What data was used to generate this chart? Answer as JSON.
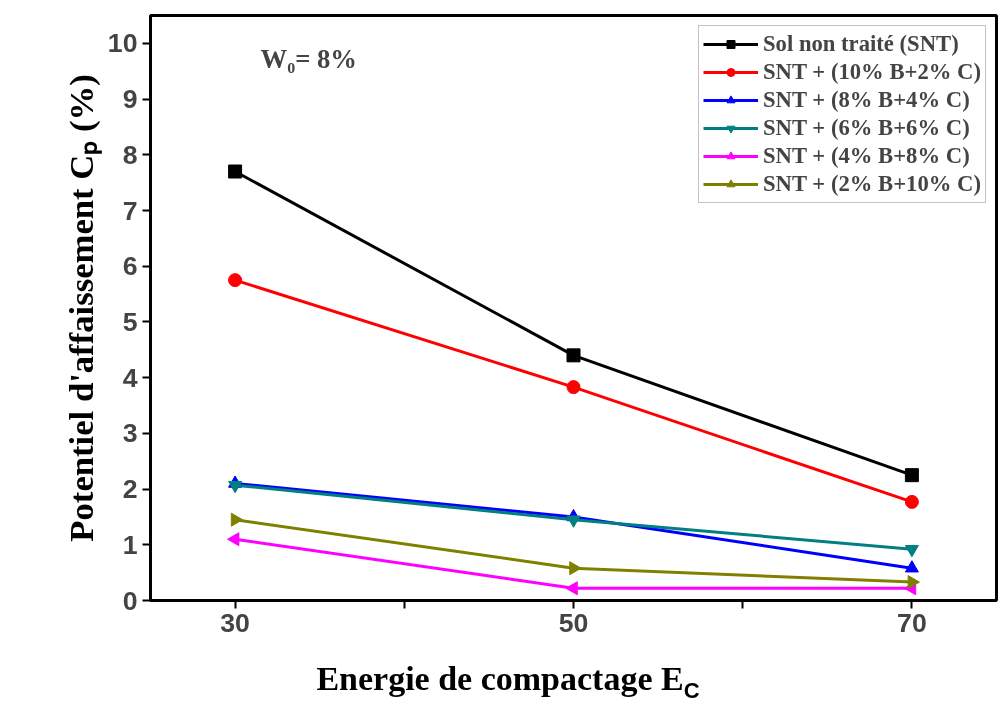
{
  "chart_data": {
    "type": "line",
    "xlabel": "Energie de compactage E$_{C}$",
    "ylabel": "Potentiel d'affaissement Cₚ (%)",
    "annotations": [
      "W₀= 8%"
    ],
    "x": [
      30,
      50,
      70
    ],
    "xlim": [
      25,
      75
    ],
    "xticks": [
      30,
      {
        "value": 40,
        "label": null
      },
      50,
      {
        "value": 60,
        "label": null
      },
      70
    ],
    "ylim": [
      0,
      10.5
    ],
    "yticks": [
      0,
      1,
      2,
      3,
      4,
      5,
      6,
      7,
      8,
      9,
      10
    ],
    "grid": false,
    "legend": "top right",
    "line_style": "solid",
    "series": [
      {
        "name": "Sol non traité (SNT)",
        "color": "#000000",
        "marker": "square",
        "values": [
          7.7,
          4.4,
          2.25
        ]
      },
      {
        "name": "SNT + (10% B+2% C)",
        "color": "#ff0000",
        "marker": "circle",
        "values": [
          5.75,
          3.83,
          1.77
        ]
      },
      {
        "name": "SNT + (8% B+4% C)",
        "color": "#0000ff",
        "marker": "triangle",
        "values": [
          2.1,
          1.5,
          0.58
        ]
      },
      {
        "name": "SNT + (6% B+6% C)",
        "color": "#008080",
        "marker": "triangle_down",
        "values": [
          2.07,
          1.45,
          0.92
        ]
      },
      {
        "name": "SNT + (4% B+8% C)",
        "color": "#ff00ff",
        "marker": "triangle_left",
        "values": [
          1.1,
          0.22,
          0.22
        ]
      },
      {
        "name": "SNT + (2% B+10% C)",
        "color": "#808000",
        "marker": "triangle_right",
        "values": [
          1.45,
          0.58,
          0.33
        ]
      }
    ]
  }
}
